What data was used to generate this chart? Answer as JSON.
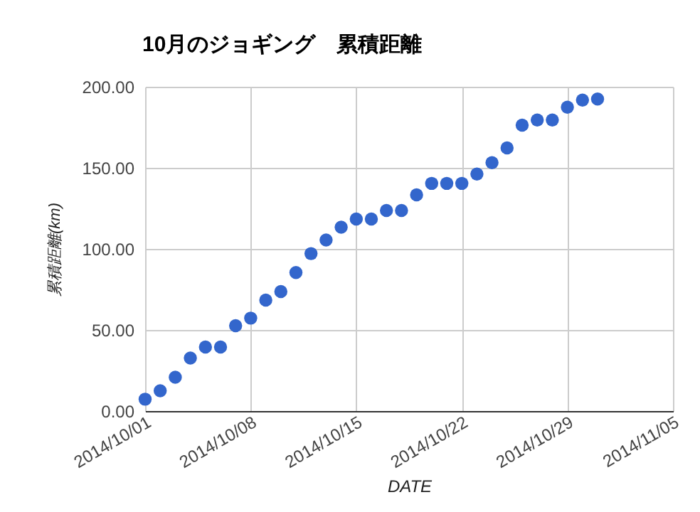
{
  "chart_data": {
    "type": "scatter",
    "title": "10月のジョギング　累積距離",
    "xlabel": "DATE",
    "ylabel": "累積距離(km)",
    "x": [
      "2014-10-01",
      "2014-10-02",
      "2014-10-03",
      "2014-10-04",
      "2014-10-05",
      "2014-10-06",
      "2014-10-07",
      "2014-10-08",
      "2014-10-09",
      "2014-10-10",
      "2014-10-11",
      "2014-10-12",
      "2014-10-13",
      "2014-10-14",
      "2014-10-15",
      "2014-10-16",
      "2014-10-17",
      "2014-10-18",
      "2014-10-19",
      "2014-10-20",
      "2014-10-21",
      "2014-10-22",
      "2014-10-23",
      "2014-10-24",
      "2014-10-25",
      "2014-10-26",
      "2014-10-27",
      "2014-10-28",
      "2014-10-29",
      "2014-10-30",
      "2014-10-31"
    ],
    "series": [
      {
        "color": "#3366cc",
        "values": [
          7.3,
          12.5,
          20.8,
          32.7,
          39.5,
          39.5,
          52.6,
          57.3,
          68.4,
          73.7,
          85.4,
          97.1,
          105.5,
          113.4,
          118.4,
          118.4,
          123.7,
          123.7,
          133.3,
          140.4,
          140.4,
          140.4,
          146.2,
          153.2,
          162.3,
          176.3,
          179.5,
          179.5,
          187.4,
          191.8,
          192.4
        ]
      }
    ],
    "xlim": [
      "2014-10-01",
      "2014-11-05"
    ],
    "xticks": [
      {
        "value": "2014-10-01",
        "label": "2014/10/01"
      },
      {
        "value": "2014-10-08",
        "label": "2014/10/08"
      },
      {
        "value": "2014-10-15",
        "label": "2014/10/15"
      },
      {
        "value": "2014-10-22",
        "label": "2014/10/22"
      },
      {
        "value": "2014-10-29",
        "label": "2014/10/29"
      },
      {
        "value": "2014-11-05",
        "label": "2014/11/05"
      }
    ],
    "ylim": [
      0,
      200
    ],
    "yticks": [
      {
        "value": 0,
        "label": "0.00"
      },
      {
        "value": 50,
        "label": "50.00"
      },
      {
        "value": 100,
        "label": "100.00"
      },
      {
        "value": 150,
        "label": "150.00"
      },
      {
        "value": 200,
        "label": "200.00"
      }
    ],
    "grid": true,
    "legend": false,
    "marker": "circle"
  }
}
